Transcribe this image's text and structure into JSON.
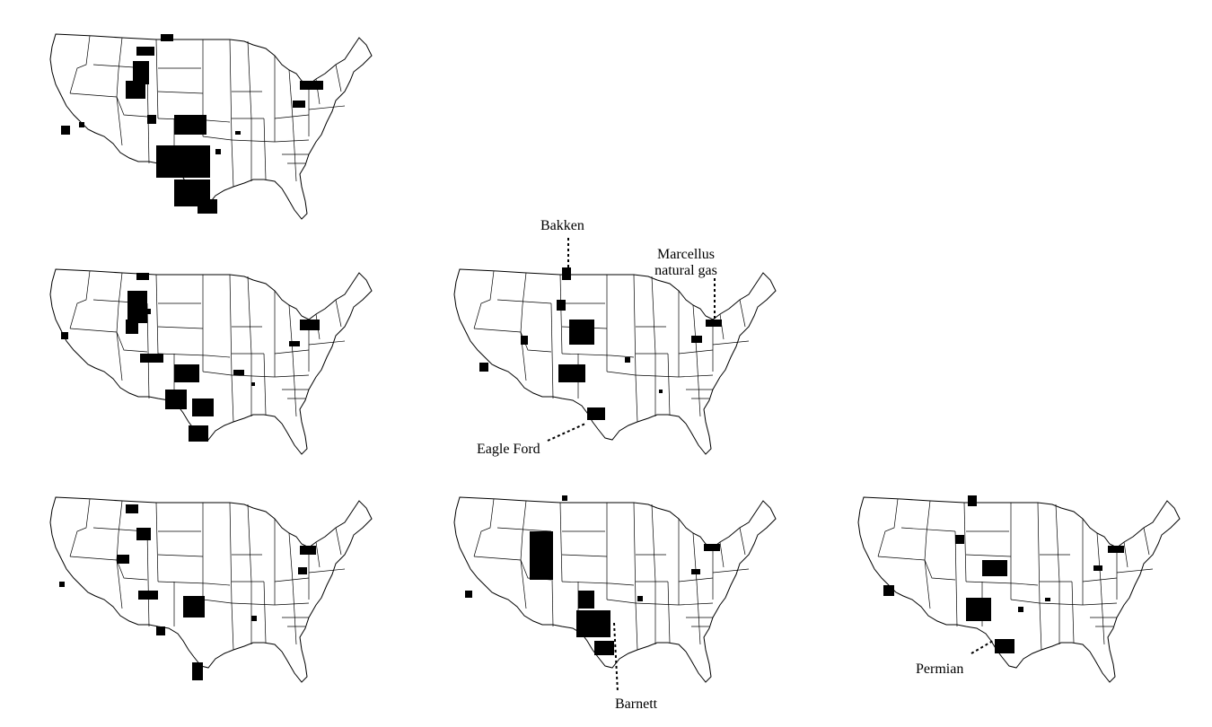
{
  "figure": {
    "panels": [
      {
        "id": "p1",
        "county_fill": "#000000"
      },
      {
        "id": "p2",
        "county_fill": "#000000"
      },
      {
        "id": "p3",
        "county_fill": "#000000"
      },
      {
        "id": "p4",
        "county_fill": "#000000"
      },
      {
        "id": "p5",
        "county_fill": "#000000"
      },
      {
        "id": "p6",
        "county_fill": "#000000"
      }
    ],
    "labels": {
      "bakken": "Bakken",
      "marcellus_line1": "Marcellus",
      "marcellus_line2": "natural gas",
      "eagle_ford": "Eagle Ford",
      "barnett": "Barnett",
      "permian": "Permian"
    },
    "colors": {
      "state_outline": "#000000",
      "background": "#ffffff",
      "highlight": "#000000"
    }
  }
}
